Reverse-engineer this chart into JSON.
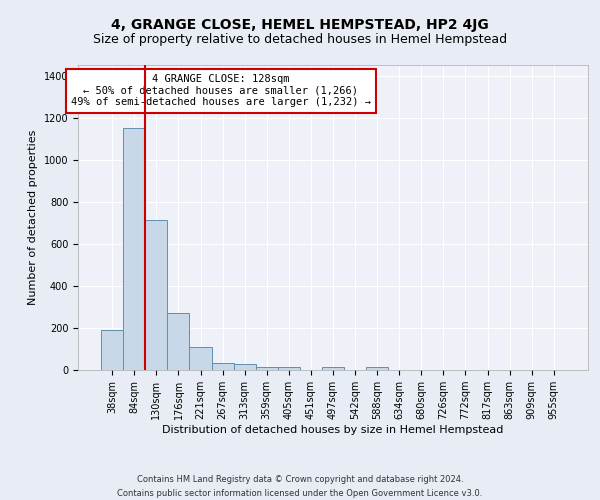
{
  "title": "4, GRANGE CLOSE, HEMEL HEMPSTEAD, HP2 4JG",
  "subtitle": "Size of property relative to detached houses in Hemel Hempstead",
  "xlabel": "Distribution of detached houses by size in Hemel Hempstead",
  "ylabel": "Number of detached properties",
  "footer_line1": "Contains HM Land Registry data © Crown copyright and database right 2024.",
  "footer_line2": "Contains public sector information licensed under the Open Government Licence v3.0.",
  "categories": [
    "38sqm",
    "84sqm",
    "130sqm",
    "176sqm",
    "221sqm",
    "267sqm",
    "313sqm",
    "359sqm",
    "405sqm",
    "451sqm",
    "497sqm",
    "542sqm",
    "588sqm",
    "634sqm",
    "680sqm",
    "726sqm",
    "772sqm",
    "817sqm",
    "863sqm",
    "909sqm",
    "955sqm"
  ],
  "values": [
    190,
    1150,
    715,
    270,
    107,
    35,
    28,
    15,
    12,
    0,
    15,
    0,
    15,
    0,
    0,
    0,
    0,
    0,
    0,
    0,
    0
  ],
  "bar_color": "#c8d8e8",
  "bar_edge_color": "#6090b0",
  "vline_pos": 1.5,
  "vline_color": "#cc0000",
  "annotation_line1": "4 GRANGE CLOSE: 128sqm",
  "annotation_line2": "← 50% of detached houses are smaller (1,266)",
  "annotation_line3": "49% of semi-detached houses are larger (1,232) →",
  "annotation_box_color": "#cc0000",
  "annotation_bg": "#ffffff",
  "ylim": [
    0,
    1450
  ],
  "yticks": [
    0,
    200,
    400,
    600,
    800,
    1000,
    1200,
    1400
  ],
  "bg_color": "#e8ecf4",
  "plot_bg_color": "#eef2f8",
  "title_fontsize": 10,
  "subtitle_fontsize": 9,
  "ylabel_fontsize": 8,
  "xlabel_fontsize": 8,
  "tick_fontsize": 7,
  "annotation_fontsize": 7.5,
  "footer_fontsize": 6
}
